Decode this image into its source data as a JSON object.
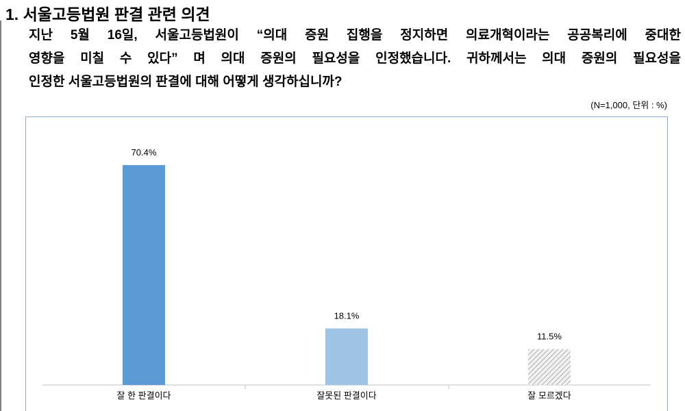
{
  "heading": "1. 서울고등법원 판결 관련 의견",
  "question_lines": [
    "지난 5월 16일, 서울고등법원이  “의대 증원 집행을 정지하면 의료개혁이라는 공공복리에 중대한",
    "영향을 미칠 수 있다” 며 의대 증원의 필요성을 인정했습니다. 귀하께서는 의대 증원의 필요성을",
    "인정한 서울고등법원의 판결에 대해 어떻게 생각하십니까?"
  ],
  "note": "(N=1,000, 단위 : %)",
  "chart_data": {
    "type": "bar",
    "categories": [
      "잘 한 판결이다",
      "잘못된 판결이다",
      "잘 모르겠다"
    ],
    "values": [
      70.4,
      18.1,
      11.5
    ],
    "value_labels": [
      "70.4%",
      "18.1%",
      "11.5%"
    ],
    "colors": [
      "#5b9bd5",
      "#9dc3e6",
      "#d9d9d9"
    ],
    "hatch": [
      false,
      false,
      true
    ]
  }
}
